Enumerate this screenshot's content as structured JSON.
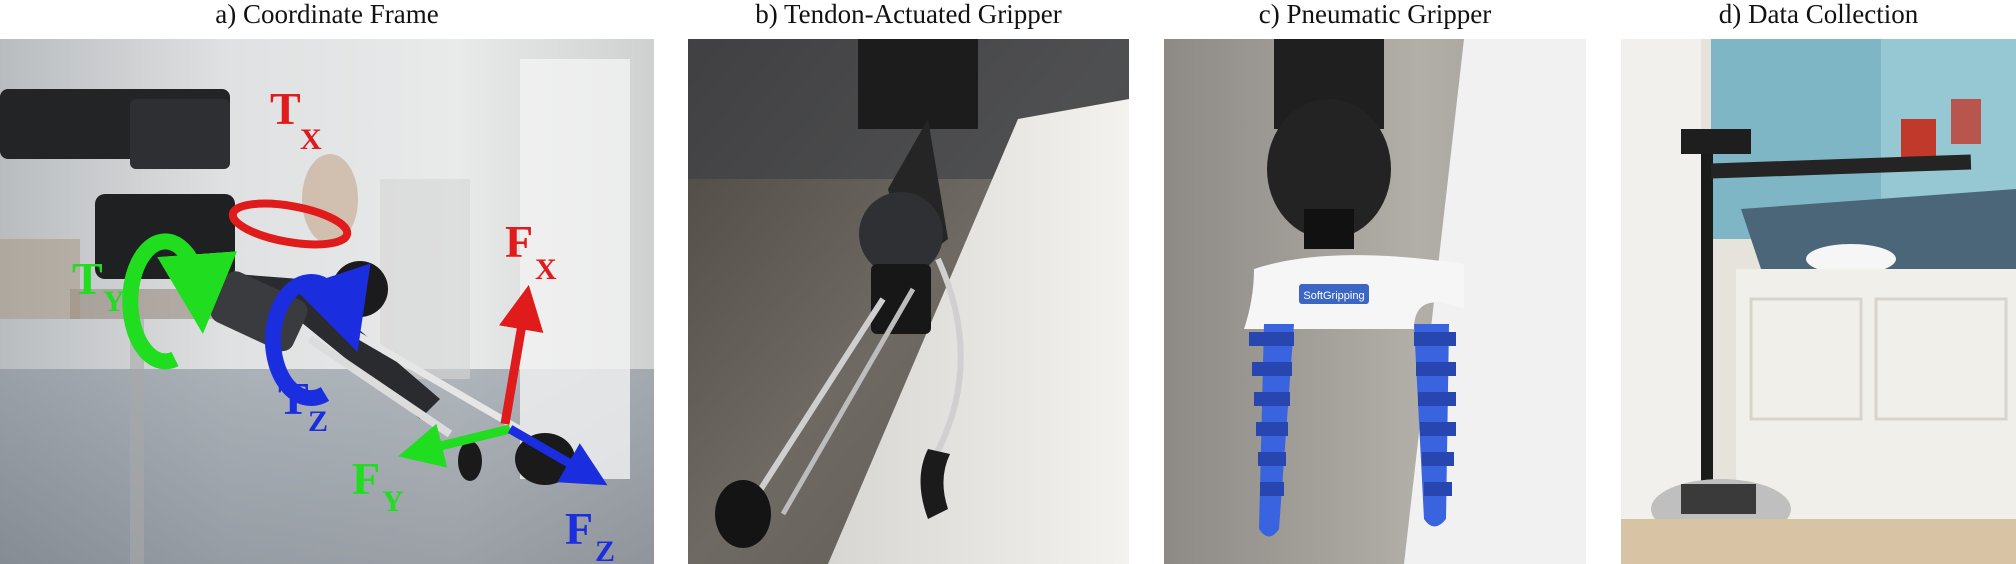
{
  "panels": [
    {
      "caption": "a)  Coordinate Frame"
    },
    {
      "caption": "b) Tendon-Actuated Gripper"
    },
    {
      "caption": "c) Pneumatic Gripper"
    },
    {
      "caption": "d) Data Collection"
    }
  ],
  "axes": {
    "tx": {
      "main": "T",
      "sub": "X",
      "color": "#e01b1b"
    },
    "ty": {
      "main": "T",
      "sub": "Y",
      "color": "#20dd20"
    },
    "tz": {
      "main": "T",
      "sub": "Z",
      "color": "#1a2ee0"
    },
    "fx": {
      "main": "F",
      "sub": "X",
      "color": "#e01b1b"
    },
    "fy": {
      "main": "F",
      "sub": "Y",
      "color": "#20dd20"
    },
    "fz": {
      "main": "F",
      "sub": "Z",
      "color": "#1a2ee0"
    }
  },
  "gripper_label": "SoftGripping"
}
